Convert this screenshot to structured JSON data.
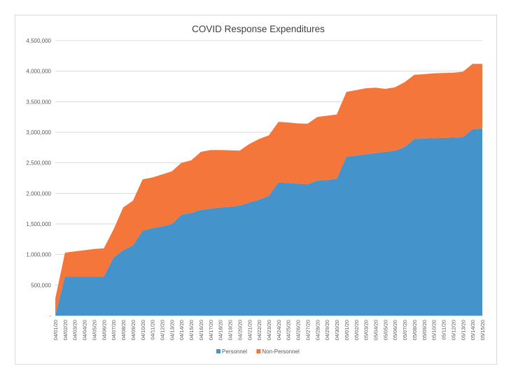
{
  "chart_data": {
    "type": "area",
    "stacked": true,
    "title": "COVID Response Expenditures",
    "xlabel": "",
    "ylabel": "",
    "ylim": [
      0,
      4500000
    ],
    "y_ticks": [
      "-",
      "500,000",
      "1,000,000",
      "1,500,000",
      "2,000,000",
      "2,500,000",
      "3,000,000",
      "3,500,000",
      "4,000,000",
      "4,500,000"
    ],
    "y_tick_values": [
      0,
      500000,
      1000000,
      1500000,
      2000000,
      2500000,
      3000000,
      3500000,
      4000000,
      4500000
    ],
    "grid": "horizontal",
    "legend_position": "bottom",
    "categories": [
      "04/01/20",
      "04/02/20",
      "04/03/20",
      "04/04/20",
      "04/05/20",
      "04/06/20",
      "04/07/20",
      "04/08/20",
      "04/09/20",
      "04/10/20",
      "04/11/20",
      "04/12/20",
      "04/13/20",
      "04/14/20",
      "04/15/20",
      "04/16/20",
      "04/17/20",
      "04/18/20",
      "04/19/20",
      "04/20/20",
      "04/21/20",
      "04/22/20",
      "04/23/20",
      "04/24/20",
      "04/25/20",
      "04/26/20",
      "04/27/20",
      "04/28/20",
      "04/29/20",
      "04/30/20",
      "05/01/20",
      "05/02/20",
      "05/03/20",
      "05/04/20",
      "05/05/20",
      "05/06/20",
      "05/07/20",
      "05/08/20",
      "05/09/20",
      "05/10/20",
      "05/11/20",
      "05/12/20",
      "05/13/20",
      "05/14/20",
      "05/15/20"
    ],
    "series": [
      {
        "name": "Personnel",
        "color": "#4493cb",
        "values": [
          0,
          640000,
          640000,
          640000,
          640000,
          640000,
          950000,
          1070000,
          1150000,
          1390000,
          1430000,
          1460000,
          1500000,
          1650000,
          1680000,
          1730000,
          1750000,
          1770000,
          1780000,
          1800000,
          1850000,
          1900000,
          1960000,
          2180000,
          2170000,
          2160000,
          2150000,
          2210000,
          2220000,
          2240000,
          2600000,
          2620000,
          2640000,
          2660000,
          2680000,
          2700000,
          2760000,
          2890000,
          2900000,
          2905000,
          2910000,
          2915000,
          2920000,
          3050000,
          3060000
        ]
      },
      {
        "name": "Non-Personnel",
        "color": "#f4763a",
        "values": [
          280000,
          390000,
          410000,
          430000,
          450000,
          460000,
          460000,
          700000,
          730000,
          840000,
          830000,
          850000,
          860000,
          850000,
          860000,
          950000,
          960000,
          940000,
          925000,
          900000,
          960000,
          990000,
          990000,
          990000,
          990000,
          985000,
          990000,
          1040000,
          1050000,
          1050000,
          1060000,
          1070000,
          1080000,
          1070000,
          1030000,
          1035000,
          1060000,
          1050000,
          1050000,
          1060000,
          1060000,
          1060000,
          1070000,
          1070000,
          1060000
        ]
      }
    ]
  }
}
